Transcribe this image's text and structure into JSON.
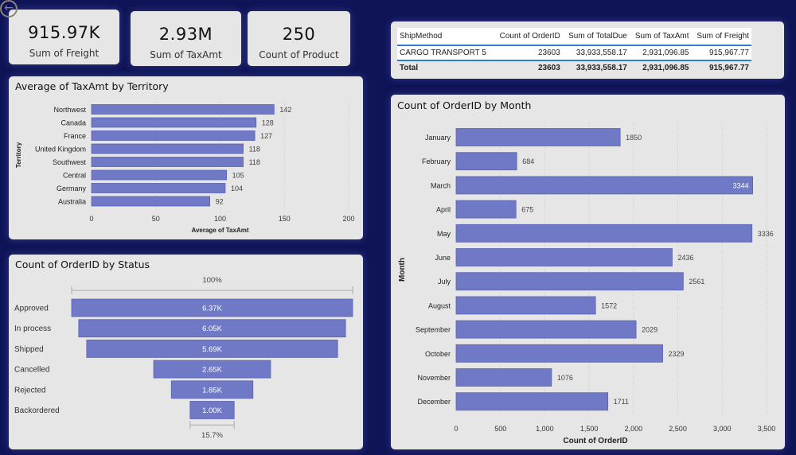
{
  "nav": {
    "back_icon": "back-arrow-icon",
    "back_glyph": "←"
  },
  "kpis": [
    {
      "value": "915.97K",
      "label": "Sum of Freight"
    },
    {
      "value": "2.93M",
      "label": "Sum of TaxAmt"
    },
    {
      "value": "250",
      "label": "Count of Product"
    }
  ],
  "table": {
    "headers": [
      "ShipMethod",
      "Count of OrderID",
      "Sum of TotalDue",
      "Sum of TaxAmt",
      "Sum of Freight"
    ],
    "rows": [
      [
        "CARGO TRANSPORT 5",
        "23603",
        "33,933,558.17",
        "2,931,096.85",
        "915,967.77"
      ]
    ],
    "total": [
      "Total",
      "23603",
      "33,933,558.17",
      "2,931,096.85",
      "915,967.77"
    ]
  },
  "colors": {
    "bar": "#6f79c6",
    "bar_edge": "#5a63b8",
    "background": "#0f1457",
    "card": "#e6e6e6",
    "table_accent": "#2a7fd0"
  },
  "chart_data": [
    {
      "type": "bar",
      "orientation": "horizontal",
      "title": "Average of TaxAmt by Territory",
      "xlabel": "Average of TaxAmt",
      "ylabel": "Territory",
      "categories": [
        "Northwest",
        "Canada",
        "France",
        "United Kingdom",
        "Southwest",
        "Central",
        "Germany",
        "Australia"
      ],
      "values": [
        142,
        128,
        127,
        118,
        118,
        105,
        104,
        92
      ],
      "xlim": [
        0,
        200
      ],
      "xticks": [
        "0",
        "50",
        "100",
        "150",
        "200"
      ],
      "grid": true
    },
    {
      "type": "bar",
      "orientation": "funnel",
      "title": "Count of OrderID by Status",
      "categories": [
        "Approved",
        "In process",
        "Shipped",
        "Cancelled",
        "Rejected",
        "Backordered"
      ],
      "values": [
        6370,
        6050,
        5690,
        2650,
        1850,
        1000
      ],
      "value_labels": [
        "6.37K",
        "6.05K",
        "5.69K",
        "2.65K",
        "1.85K",
        "1.00K"
      ],
      "top_percent": "100%",
      "bottom_percent": "15.7%"
    },
    {
      "type": "bar",
      "orientation": "horizontal",
      "title": "Count of OrderID by Month",
      "xlabel": "Count of OrderID",
      "ylabel": "Month",
      "categories": [
        "January",
        "February",
        "March",
        "April",
        "May",
        "June",
        "July",
        "August",
        "September",
        "October",
        "November",
        "December"
      ],
      "values": [
        1850,
        684,
        3344,
        675,
        3336,
        2436,
        2561,
        1572,
        2029,
        2329,
        1076,
        1711
      ],
      "xlim": [
        0,
        3500
      ],
      "xticks": [
        "0",
        "500",
        "1,000",
        "1,500",
        "2,000",
        "2,500",
        "3,000",
        "3,500"
      ],
      "grid": true
    }
  ]
}
